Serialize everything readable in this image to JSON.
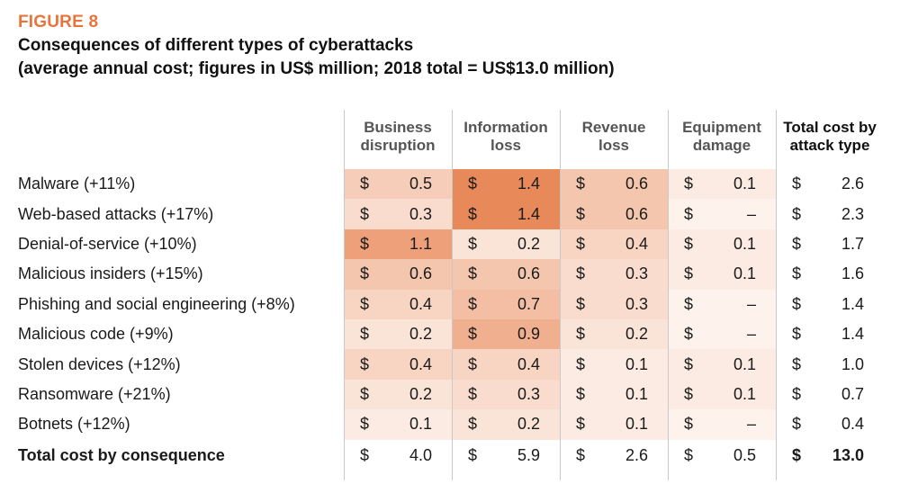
{
  "figure": {
    "label": "FIGURE 8",
    "title": "Consequences of different types of cyberattacks",
    "subtitle": "(average annual cost; figures in US$ million; 2018 total = US$13.0 million)"
  },
  "chart_data": {
    "type": "table",
    "currency_symbol": "$",
    "columns": [
      "Business disruption",
      "Information loss",
      "Revenue loss",
      "Equipment damage",
      "Total cost by attack type"
    ],
    "column_lines": [
      [
        "Business",
        "disruption"
      ],
      [
        "Information",
        "loss"
      ],
      [
        "Revenue",
        "loss"
      ],
      [
        "Equipment",
        "damage"
      ],
      [
        "Total cost by",
        "attack type"
      ]
    ],
    "rows": [
      {
        "label": "Malware (+11%)",
        "values": [
          "0.5",
          "1.4",
          "0.6",
          "0.1",
          "2.6"
        ]
      },
      {
        "label": "Web-based attacks (+17%)",
        "values": [
          "0.3",
          "1.4",
          "0.6",
          "–",
          "2.3"
        ]
      },
      {
        "label": "Denial-of-service (+10%)",
        "values": [
          "1.1",
          "0.2",
          "0.4",
          "0.1",
          "1.7"
        ]
      },
      {
        "label": "Malicious insiders (+15%)",
        "values": [
          "0.6",
          "0.6",
          "0.3",
          "0.1",
          "1.6"
        ]
      },
      {
        "label": "Phishing and social engineering (+8%)",
        "values": [
          "0.4",
          "0.7",
          "0.3",
          "–",
          "1.4"
        ]
      },
      {
        "label": "Malicious code (+9%)",
        "values": [
          "0.2",
          "0.9",
          "0.2",
          "–",
          "1.4"
        ]
      },
      {
        "label": "Stolen devices (+12%)",
        "values": [
          "0.4",
          "0.4",
          "0.1",
          "0.1",
          "1.0"
        ]
      },
      {
        "label": "Ransomware (+21%)",
        "values": [
          "0.2",
          "0.3",
          "0.1",
          "0.1",
          "0.7"
        ]
      },
      {
        "label": "Botnets (+12%)",
        "values": [
          "0.1",
          "0.2",
          "0.1",
          "–",
          "0.4"
        ]
      }
    ],
    "total_row": {
      "label": "Total cost by consequence",
      "values": [
        "4.0",
        "5.9",
        "2.6",
        "0.5",
        "13.0"
      ]
    },
    "heatmap_colors": {
      "low": "#fdf3ec",
      "high": "#e8895a"
    }
  }
}
